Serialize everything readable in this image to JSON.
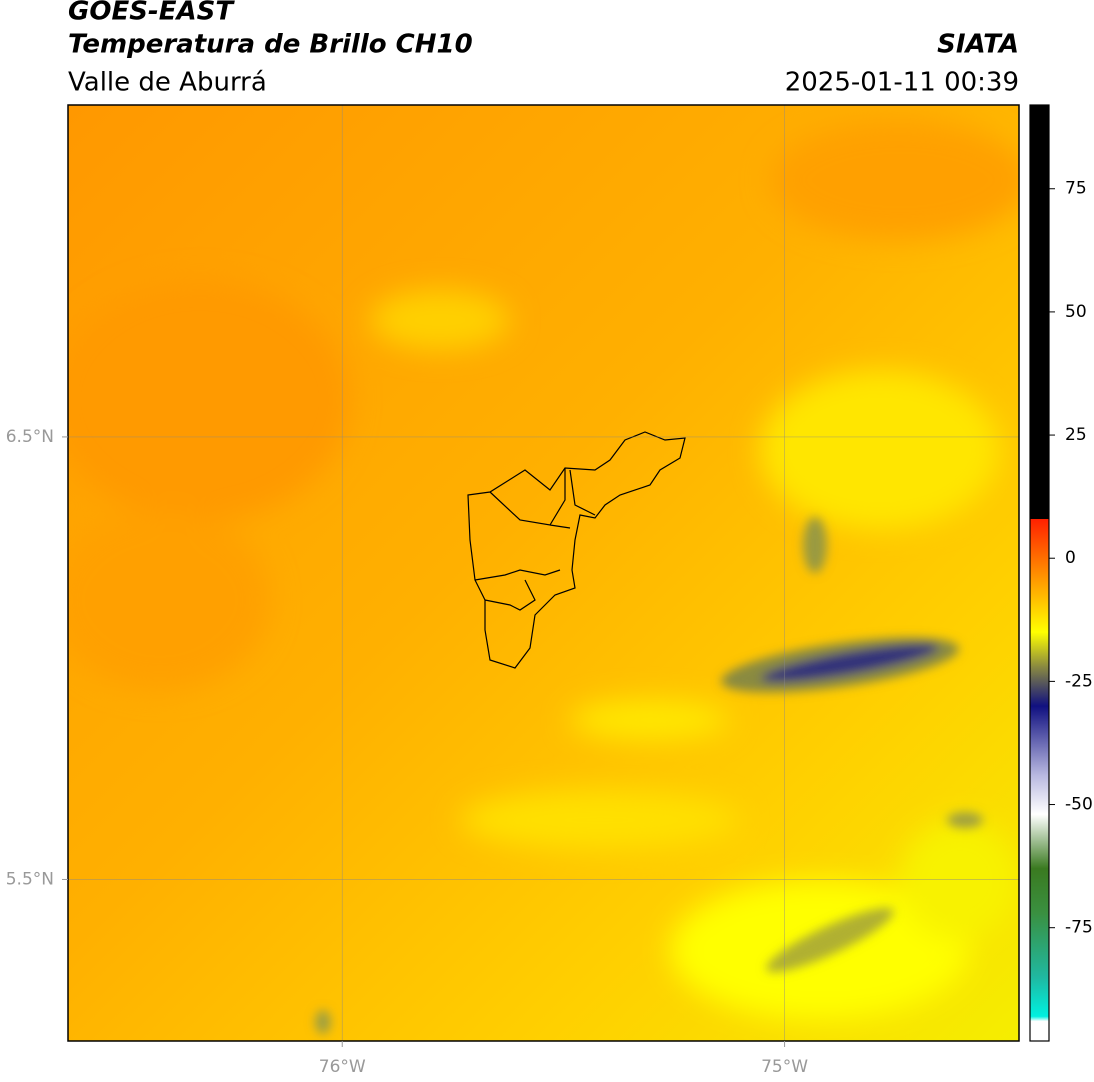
{
  "header": {
    "title": "GOES-EAST",
    "subtitle": "Temperatura de Brillo CH10",
    "region": "Valle de Aburrá",
    "source": "SIATA",
    "datetime": "2025-01-11 00:39"
  },
  "map": {
    "xlim": [
      -76.62,
      -74.47
    ],
    "ylim": [
      5.135,
      7.25
    ],
    "xticks": [
      {
        "value": -76,
        "label": "76°W"
      },
      {
        "value": -75,
        "label": "75°W"
      }
    ],
    "yticks": [
      {
        "value": 6.5,
        "label": "6.5°N"
      },
      {
        "value": 5.5,
        "label": "5.5°N"
      }
    ],
    "grid": true
  },
  "colorbar": {
    "lim": [
      -98,
      92
    ],
    "ticks": [
      75,
      50,
      25,
      0,
      -25,
      -50,
      -75
    ],
    "stops": [
      {
        "value": -98,
        "color": "#ffffff"
      },
      {
        "value": -94,
        "color": "#ffffff"
      },
      {
        "value": -93,
        "color": "#00f0e0"
      },
      {
        "value": -85,
        "color": "#20b8a0"
      },
      {
        "value": -72,
        "color": "#3a9040"
      },
      {
        "value": -63,
        "color": "#3a7a20"
      },
      {
        "value": -52,
        "color": "#ffffff"
      },
      {
        "value": -44,
        "color": "#b8b8e0"
      },
      {
        "value": -30,
        "color": "#101080"
      },
      {
        "value": -22,
        "color": "#8a8a40"
      },
      {
        "value": -15,
        "color": "#ffff00"
      },
      {
        "value": -5,
        "color": "#ffa000"
      },
      {
        "value": 8,
        "color": "#ff2000"
      },
      {
        "value": 8,
        "color": "#000000"
      },
      {
        "value": 92,
        "color": "#000000"
      }
    ]
  }
}
